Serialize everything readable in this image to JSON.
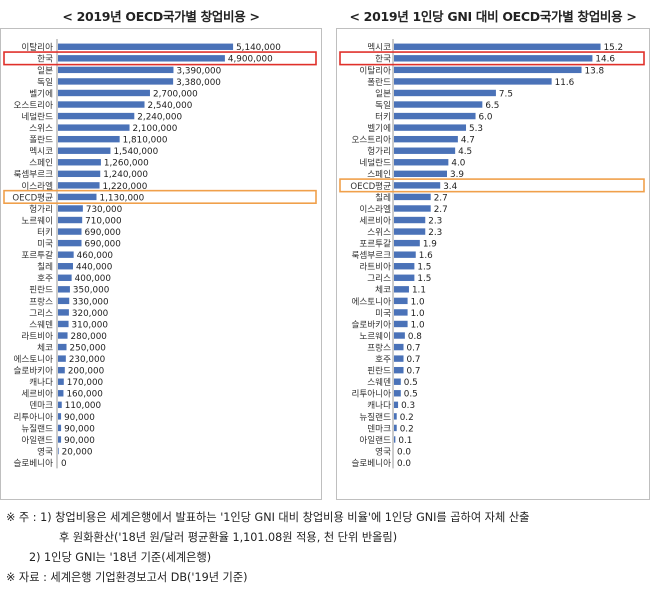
{
  "chart_data": [
    {
      "type": "bar",
      "orientation": "horizontal",
      "title": "< 2019년 OECD국가별 창업비용 >",
      "categories": [
        "이탈리아",
        "한국",
        "일본",
        "독일",
        "벨기에",
        "오스트리아",
        "네덜란드",
        "스위스",
        "폴란드",
        "멕시코",
        "스페인",
        "룩셈부르크",
        "이스라엘",
        "OECD평균",
        "헝가리",
        "노르웨이",
        "터키",
        "미국",
        "포르투갈",
        "칠레",
        "호주",
        "핀란드",
        "프랑스",
        "그리스",
        "스웨덴",
        "라트비아",
        "체코",
        "에스토니아",
        "슬로바키아",
        "캐나다",
        "세르비아",
        "덴마크",
        "리투아니아",
        "뉴질랜드",
        "아일랜드",
        "영국",
        "슬로베니아"
      ],
      "values": [
        5140000,
        4900000,
        3390000,
        3380000,
        2700000,
        2540000,
        2240000,
        2100000,
        1810000,
        1540000,
        1260000,
        1240000,
        1220000,
        1130000,
        730000,
        710000,
        690000,
        690000,
        460000,
        440000,
        400000,
        350000,
        330000,
        320000,
        310000,
        280000,
        250000,
        230000,
        200000,
        170000,
        160000,
        110000,
        90000,
        90000,
        90000,
        20000,
        0
      ],
      "labels": [
        "5,140,000",
        "4,900,000",
        "3,390,000",
        "3,380,000",
        "2,700,000",
        "2,540,000",
        "2,240,000",
        "2,100,000",
        "1,810,000",
        "1,540,000",
        "1,260,000",
        "1,240,000",
        "1,220,000",
        "1,130,000",
        "730,000",
        "710,000",
        "690,000",
        "690,000",
        "460,000",
        "440,000",
        "400,000",
        "350,000",
        "330,000",
        "320,000",
        "310,000",
        "280,000",
        "250,000",
        "230,000",
        "200,000",
        "170,000",
        "160,000",
        "110,000",
        "90,000",
        "90,000",
        "90,000",
        "20,000",
        "0"
      ],
      "xlim": [
        0,
        6400000
      ],
      "highlight_red": "한국",
      "highlight_orange": "OECD평균"
    },
    {
      "type": "bar",
      "orientation": "horizontal",
      "title": "< 2019년 1인당 GNI 대비 OECD국가별 창업비용 >",
      "categories": [
        "멕시코",
        "한국",
        "이탈리아",
        "폴란드",
        "일본",
        "독일",
        "터키",
        "벨기에",
        "오스트리아",
        "헝가리",
        "네덜란드",
        "스페인",
        "OECD평균",
        "칠레",
        "이스라엘",
        "세르비아",
        "스위스",
        "포르투갈",
        "룩셈부르크",
        "라트비아",
        "그리스",
        "체코",
        "에스토니아",
        "미국",
        "슬로바키아",
        "노르웨이",
        "프랑스",
        "호주",
        "핀란드",
        "스웨덴",
        "리투아니아",
        "캐나다",
        "뉴질랜드",
        "덴마크",
        "아일랜드",
        "영국",
        "슬로베니아"
      ],
      "values": [
        15.2,
        14.6,
        13.8,
        11.6,
        7.5,
        6.5,
        6.0,
        5.3,
        4.7,
        4.5,
        4.0,
        3.9,
        3.4,
        2.7,
        2.7,
        2.3,
        2.3,
        1.9,
        1.6,
        1.5,
        1.5,
        1.1,
        1.0,
        1.0,
        1.0,
        0.8,
        0.7,
        0.7,
        0.7,
        0.5,
        0.5,
        0.3,
        0.2,
        0.2,
        0.1,
        0.0,
        0.0
      ],
      "labels": [
        "15.2",
        "14.6",
        "13.8",
        "11.6",
        "7.5",
        "6.5",
        "6.0",
        "5.3",
        "4.7",
        "4.5",
        "4.0",
        "3.9",
        "3.4",
        "2.7",
        "2.7",
        "2.3",
        "2.3",
        "1.9",
        "1.6",
        "1.5",
        "1.5",
        "1.1",
        "1.0",
        "1.0",
        "1.0",
        "0.8",
        "0.7",
        "0.7",
        "0.7",
        "0.5",
        "0.5",
        "0.3",
        "0.2",
        "0.2",
        "0.1",
        "0.0",
        "0.0"
      ],
      "xlim": [
        0,
        15.6
      ],
      "highlight_red": "한국",
      "highlight_orange": "OECD평균"
    }
  ],
  "colors": {
    "bar": "#4a72b8",
    "highlight_red": "#e0302a",
    "highlight_orange": "#f0a04b",
    "frame": "#bfbfbf"
  },
  "notes": {
    "line1": "※ 주 : 1) 창업비용은 세계은행에서 발표하는 '1인당 GNI 대비 창업비용 비율'에 1인당 GNI를 곱하여 자체 산출",
    "line2": "후 원화환산('18년 원/달러 평균환율 1,101.08원 적용, 천 단위 반올림)",
    "line3": "2) 1인당 GNI는 '18년 기준(세계은행)",
    "line4": "※ 자료 : 세계은행 기업환경보고서 DB('19년 기준)"
  }
}
